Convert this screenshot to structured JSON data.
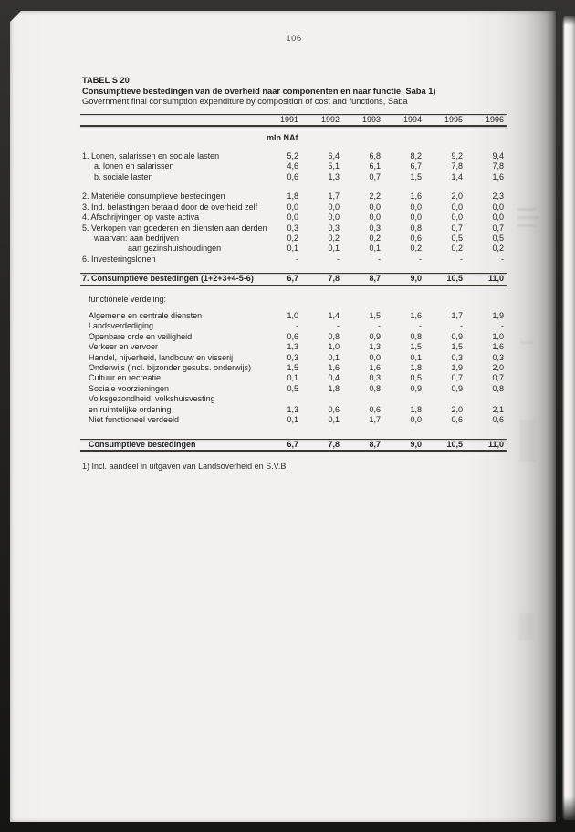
{
  "page": {
    "page_number": "106",
    "table_id": "TABEL S 20",
    "title_nl": "Consumptieve bestedingen van de overheid naar componenten en naar functie, Saba 1)",
    "title_en": "Government final consumption expenditure by composition of cost and functions, Saba",
    "unit": "mln NAf",
    "footnote": "1) Incl. aandeel in uitgaven van Landsoverheid en S.V.B."
  },
  "table": {
    "years": [
      "1991",
      "1992",
      "1993",
      "1994",
      "1995",
      "1996"
    ],
    "component_rows": [
      {
        "label": "1. Lonen, salarissen en sociale lasten",
        "indent": 0,
        "values": [
          "5,2",
          "6,4",
          "6,8",
          "8,2",
          "9,2",
          "9,4"
        ]
      },
      {
        "label": "a. lonen en salarissen",
        "indent": 1,
        "values": [
          "4,6",
          "5,1",
          "6,1",
          "6,7",
          "7,8",
          "7,8"
        ]
      },
      {
        "label": "b. sociale lasten",
        "indent": 1,
        "values": [
          "0,6",
          "1,3",
          "0,7",
          "1,5",
          "1,4",
          "1,6"
        ]
      },
      {
        "gap": true
      },
      {
        "label": "2. Materiële consumptieve bestedingen",
        "indent": 0,
        "values": [
          "1,8",
          "1,7",
          "2,2",
          "1,6",
          "2,0",
          "2,3"
        ]
      },
      {
        "label": "3. Ind. belastingen betaald door de overheid zelf",
        "indent": 0,
        "values": [
          "0,0",
          "0,0",
          "0,0",
          "0,0",
          "0,0",
          "0,0"
        ]
      },
      {
        "label": "4. Afschrijvingen op vaste activa",
        "indent": 0,
        "values": [
          "0,0",
          "0,0",
          "0,0",
          "0,0",
          "0,0",
          "0,0"
        ]
      },
      {
        "label": "5. Verkopen van goederen en diensten aan derden",
        "indent": 0,
        "values": [
          "0,3",
          "0,3",
          "0,3",
          "0,8",
          "0,7",
          "0,7"
        ]
      },
      {
        "label": "waarvan: aan bedrijven",
        "indent": 1,
        "values": [
          "0,2",
          "0,2",
          "0,2",
          "0,6",
          "0,5",
          "0,5"
        ]
      },
      {
        "label": "aan gezinshuishoudingen",
        "indent": 2,
        "values": [
          "0,1",
          "0,1",
          "0,1",
          "0,2",
          "0,2",
          "0,2"
        ]
      },
      {
        "label": "6. Investeringslonen",
        "indent": 0,
        "values": [
          "-",
          "-",
          "-",
          "-",
          "-",
          "-"
        ]
      }
    ],
    "total_row": {
      "label": "7. Consumptieve bestedingen (1+2+3+4-5-6)",
      "indent": 0,
      "values": [
        "6,7",
        "7,8",
        "8,7",
        "9,0",
        "10,5",
        "11,0"
      ]
    },
    "functional_header": "functionele verdeling:",
    "functional_rows": [
      {
        "label": "Algemene en centrale diensten",
        "values": [
          "1,0",
          "1,4",
          "1,5",
          "1,6",
          "1,7",
          "1,9"
        ]
      },
      {
        "label": "Landsverdediging",
        "values": [
          "-",
          "-",
          "-",
          "-",
          "-",
          "-"
        ]
      },
      {
        "label": "Openbare orde en veiligheid",
        "values": [
          "0,6",
          "0,8",
          "0,9",
          "0,8",
          "0,9",
          "1,0"
        ]
      },
      {
        "label": "Verkeer en vervoer",
        "values": [
          "1,3",
          "1,0",
          "1,3",
          "1,5",
          "1,5",
          "1,6"
        ]
      },
      {
        "label": "Handel, nijverheid, landbouw en visserij",
        "values": [
          "0,3",
          "0,1",
          "0,0",
          "0,1",
          "0,3",
          "0,3"
        ]
      },
      {
        "label": "Onderwijs (incl. bijzonder gesubs. onderwijs)",
        "values": [
          "1,5",
          "1,6",
          "1,6",
          "1,8",
          "1,9",
          "2,0"
        ]
      },
      {
        "label": "Cultuur en recreatie",
        "values": [
          "0,1",
          "0,4",
          "0,3",
          "0,5",
          "0,7",
          "0,7"
        ]
      },
      {
        "label": "Sociale voorzieningen",
        "values": [
          "0,5",
          "1,8",
          "0,8",
          "0,9",
          "0,9",
          "0,8"
        ]
      },
      {
        "label": "Volksgezondheid, volkshuisvesting",
        "values": []
      },
      {
        "label": "en ruimtelijke ordening",
        "values": [
          "1,3",
          "0,6",
          "0,6",
          "1,8",
          "2,0",
          "2,1"
        ]
      },
      {
        "label": "Niet functioneel verdeeld",
        "values": [
          "0,1",
          "0,1",
          "1,7",
          "0,0",
          "0,6",
          "0,6"
        ]
      }
    ],
    "bottom_total": {
      "label": "Consumptieve bestedingen",
      "indent": 0,
      "values": [
        "6,7",
        "7,8",
        "8,7",
        "9,0",
        "10,5",
        "11,0"
      ]
    }
  }
}
